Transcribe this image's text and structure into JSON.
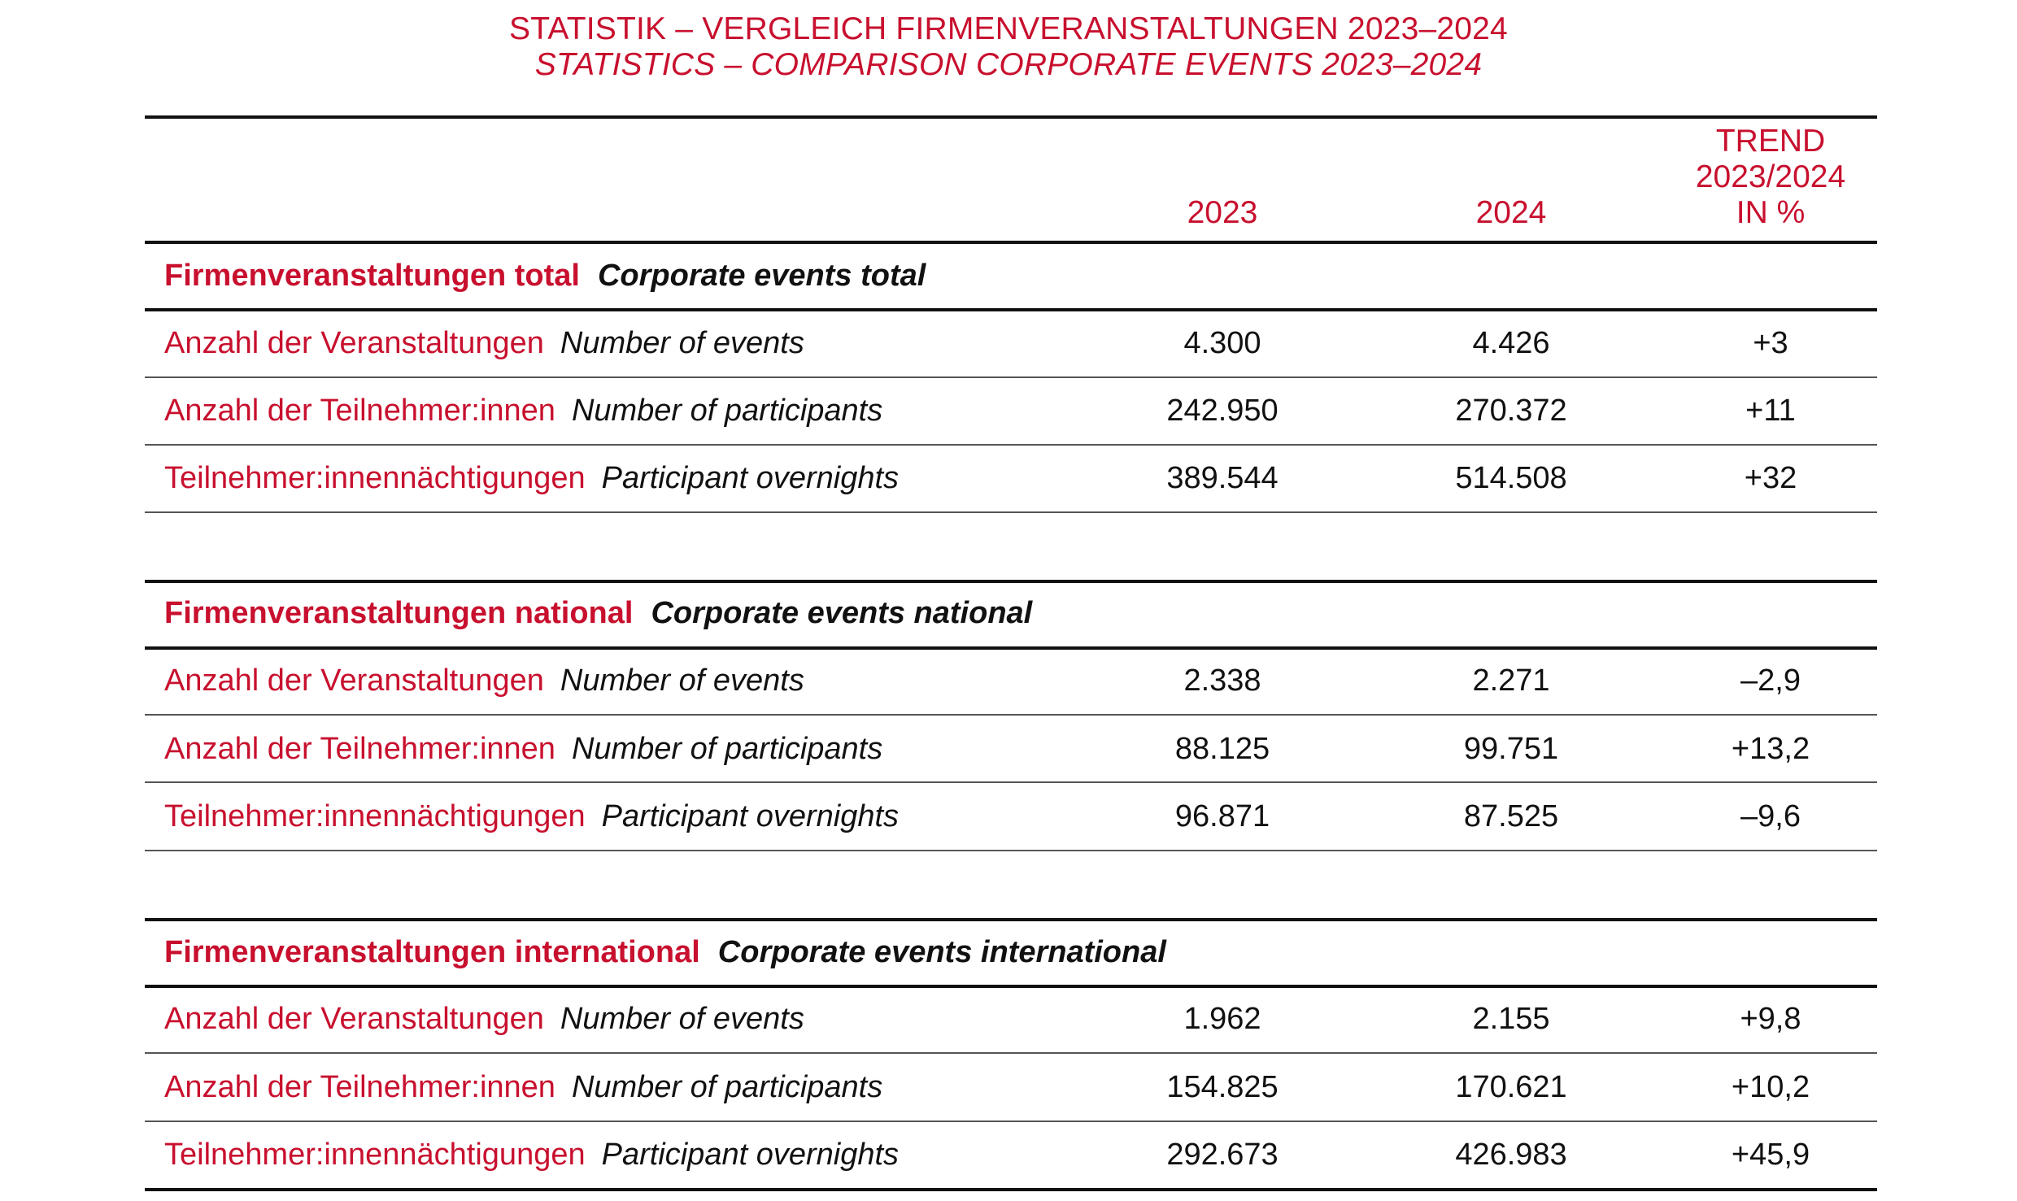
{
  "title": {
    "de": "STATISTIK – VERGLEICH FIRMENVERANSTALTUNGEN 2023–2024",
    "en": "STATISTICS – COMPARISON CORPORATE EVENTS 2023–2024"
  },
  "columns": {
    "y2023": "2023",
    "y2024": "2024",
    "trend_line1": "TREND",
    "trend_line2": "2023/2024",
    "trend_line3": "IN %"
  },
  "sections": [
    {
      "title_de": "Firmenveranstaltungen total",
      "title_en": "Corporate events total",
      "rows": [
        {
          "label_de": "Anzahl der Veranstaltungen",
          "label_en": "Number of events",
          "v2023": "4.300",
          "v2024": "4.426",
          "trend": "+3"
        },
        {
          "label_de": "Anzahl der Teilnehmer:innen",
          "label_en": "Number of participants",
          "v2023": "242.950",
          "v2024": "270.372",
          "trend": "+11"
        },
        {
          "label_de": "Teilnehmer:innennächtigungen",
          "label_en": "Participant overnights",
          "v2023": "389.544",
          "v2024": "514.508",
          "trend": "+32"
        }
      ]
    },
    {
      "title_de": "Firmenveranstaltungen national",
      "title_en": "Corporate events national",
      "rows": [
        {
          "label_de": "Anzahl der Veranstaltungen",
          "label_en": "Number of events",
          "v2023": "2.338",
          "v2024": "2.271",
          "trend": "–2,9"
        },
        {
          "label_de": "Anzahl der Teilnehmer:innen",
          "label_en": "Number of participants",
          "v2023": "88.125",
          "v2024": "99.751",
          "trend": "+13,2"
        },
        {
          "label_de": "Teilnehmer:innennächtigungen",
          "label_en": "Participant overnights",
          "v2023": "96.871",
          "v2024": "87.525",
          "trend": "–9,6"
        }
      ]
    },
    {
      "title_de": "Firmenveranstaltungen international",
      "title_en": "Corporate events international",
      "rows": [
        {
          "label_de": "Anzahl der Veranstaltungen",
          "label_en": "Number of events",
          "v2023": "1.962",
          "v2024": "2.155",
          "trend": "+9,8"
        },
        {
          "label_de": "Anzahl der Teilnehmer:innen",
          "label_en": "Number of participants",
          "v2023": "154.825",
          "v2024": "170.621",
          "trend": "+10,2"
        },
        {
          "label_de": "Teilnehmer:innennächtigungen",
          "label_en": "Participant overnights",
          "v2023": "292.673",
          "v2024": "426.983",
          "trend": "+45,9"
        }
      ]
    }
  ],
  "colors": {
    "accent": "#c8102e",
    "text": "#111111"
  }
}
